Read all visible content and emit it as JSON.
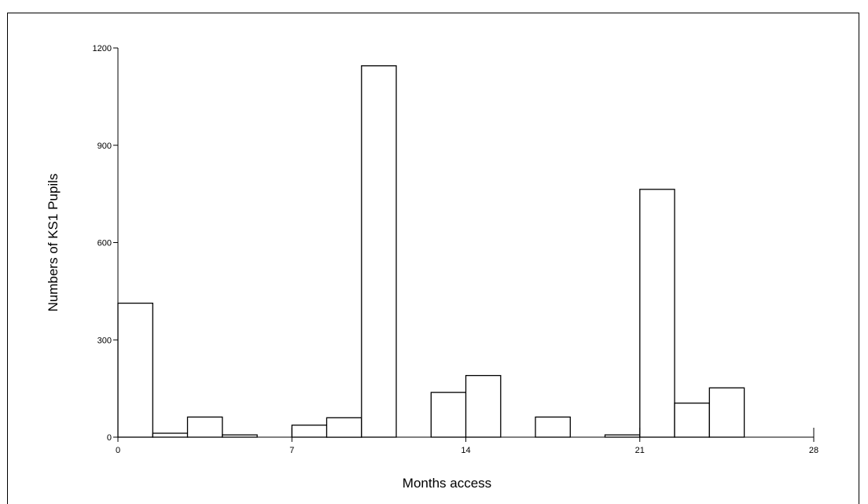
{
  "chart_data": {
    "type": "bar",
    "title": "",
    "xlabel": "Months access",
    "ylabel": "Numbers of KS1 Pupils",
    "xlim": [
      0,
      28
    ],
    "ylim": [
      0,
      1200
    ],
    "x_ticks": [
      "0",
      "7",
      "14",
      "21",
      "28"
    ],
    "y_ticks": [
      "0",
      "300",
      "600",
      "900",
      "1200"
    ],
    "bin_width": 1.4,
    "bins": [
      {
        "x_start": 0.0,
        "value": 413
      },
      {
        "x_start": 1.4,
        "value": 12
      },
      {
        "x_start": 2.8,
        "value": 62
      },
      {
        "x_start": 4.2,
        "value": 7
      },
      {
        "x_start": 5.6,
        "value": 0
      },
      {
        "x_start": 7.0,
        "value": 37
      },
      {
        "x_start": 8.4,
        "value": 60
      },
      {
        "x_start": 9.8,
        "value": 1145
      },
      {
        "x_start": 11.2,
        "value": 0
      },
      {
        "x_start": 12.6,
        "value": 138
      },
      {
        "x_start": 14.0,
        "value": 190
      },
      {
        "x_start": 15.4,
        "value": 0
      },
      {
        "x_start": 16.8,
        "value": 62
      },
      {
        "x_start": 18.2,
        "value": 0
      },
      {
        "x_start": 19.6,
        "value": 7
      },
      {
        "x_start": 21.0,
        "value": 764
      },
      {
        "x_start": 22.4,
        "value": 105
      },
      {
        "x_start": 23.8,
        "value": 152
      },
      {
        "x_start": 25.2,
        "value": 0
      },
      {
        "x_start": 26.6,
        "value": 0
      }
    ],
    "grid": false,
    "legend": "none",
    "bar_fill": "#ffffff",
    "bar_stroke": "#000000"
  }
}
